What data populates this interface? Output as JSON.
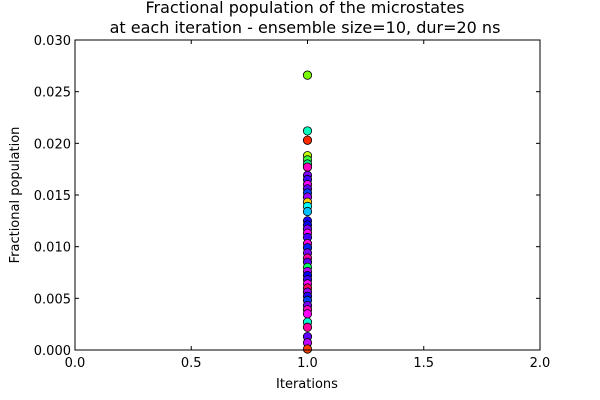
{
  "chart_data": {
    "type": "scatter",
    "title_lines": [
      "Fractional population of the microstates",
      "at each iteration - ensemble size=10, dur=20 ns"
    ],
    "xlabel": "Iterations",
    "ylabel": "Fractional population",
    "xlim": [
      0.0,
      2.0
    ],
    "ylim": [
      0.0,
      0.03
    ],
    "xticks": [
      "0.0",
      "0.5",
      "1.0",
      "1.5",
      "2.0"
    ],
    "yticks": [
      "0.000",
      "0.005",
      "0.010",
      "0.015",
      "0.020",
      "0.025",
      "0.030"
    ],
    "grid": false,
    "points": [
      {
        "x": 1.0,
        "y": 0.0266,
        "color": "#7cfc00"
      },
      {
        "x": 1.0,
        "y": 0.0212,
        "color": "#00ffbf"
      },
      {
        "x": 1.0,
        "y": 0.0203,
        "color": "#ff2a00"
      },
      {
        "x": 1.0,
        "y": 0.0188,
        "color": "#bfff00"
      },
      {
        "x": 1.0,
        "y": 0.0184,
        "color": "#40ff40"
      },
      {
        "x": 1.0,
        "y": 0.018,
        "color": "#00ff80"
      },
      {
        "x": 1.0,
        "y": 0.0177,
        "color": "#ff00c0"
      },
      {
        "x": 1.0,
        "y": 0.0169,
        "color": "#8000ff"
      },
      {
        "x": 1.0,
        "y": 0.0165,
        "color": "#4000ff"
      },
      {
        "x": 1.0,
        "y": 0.016,
        "color": "#ff00ff"
      },
      {
        "x": 1.0,
        "y": 0.0156,
        "color": "#6000ff"
      },
      {
        "x": 1.0,
        "y": 0.0152,
        "color": "#0040ff"
      },
      {
        "x": 1.0,
        "y": 0.0148,
        "color": "#a000ff"
      },
      {
        "x": 1.0,
        "y": 0.0143,
        "color": "#ffd000"
      },
      {
        "x": 1.0,
        "y": 0.0139,
        "color": "#00ffff"
      },
      {
        "x": 1.0,
        "y": 0.0134,
        "color": "#00c0ff"
      },
      {
        "x": 1.0,
        "y": 0.0125,
        "color": "#2000ff"
      },
      {
        "x": 1.0,
        "y": 0.0121,
        "color": "#0000ff"
      },
      {
        "x": 1.0,
        "y": 0.0117,
        "color": "#8000ff"
      },
      {
        "x": 1.0,
        "y": 0.0113,
        "color": "#ff00ff"
      },
      {
        "x": 1.0,
        "y": 0.0109,
        "color": "#4000ff"
      },
      {
        "x": 1.0,
        "y": 0.0103,
        "color": "#ff00e0"
      },
      {
        "x": 1.0,
        "y": 0.0099,
        "color": "#0020ff"
      },
      {
        "x": 1.0,
        "y": 0.0094,
        "color": "#8000ff"
      },
      {
        "x": 1.0,
        "y": 0.0089,
        "color": "#ff00a0"
      },
      {
        "x": 1.0,
        "y": 0.0085,
        "color": "#6000ff"
      },
      {
        "x": 1.0,
        "y": 0.008,
        "color": "#00ff60"
      },
      {
        "x": 1.0,
        "y": 0.0076,
        "color": "#c000ff"
      },
      {
        "x": 1.0,
        "y": 0.0072,
        "color": "#0000ff"
      },
      {
        "x": 1.0,
        "y": 0.0068,
        "color": "#4000ff"
      },
      {
        "x": 1.0,
        "y": 0.0064,
        "color": "#ff00ff"
      },
      {
        "x": 1.0,
        "y": 0.006,
        "color": "#ff0060"
      },
      {
        "x": 1.0,
        "y": 0.0056,
        "color": "#a000ff"
      },
      {
        "x": 1.0,
        "y": 0.0052,
        "color": "#2000ff"
      },
      {
        "x": 1.0,
        "y": 0.0048,
        "color": "#0040ff"
      },
      {
        "x": 1.0,
        "y": 0.0043,
        "color": "#8000ff"
      },
      {
        "x": 1.0,
        "y": 0.0039,
        "color": "#ff00c0"
      },
      {
        "x": 1.0,
        "y": 0.0035,
        "color": "#ff00ff"
      },
      {
        "x": 1.0,
        "y": 0.0027,
        "color": "#00ffd0"
      },
      {
        "x": 1.0,
        "y": 0.0022,
        "color": "#ff00a0"
      },
      {
        "x": 1.0,
        "y": 0.0013,
        "color": "#6000ff"
      },
      {
        "x": 1.0,
        "y": 0.0007,
        "color": "#c000ff"
      },
      {
        "x": 1.0,
        "y": 0.0001,
        "color": "#ff4000"
      }
    ]
  }
}
